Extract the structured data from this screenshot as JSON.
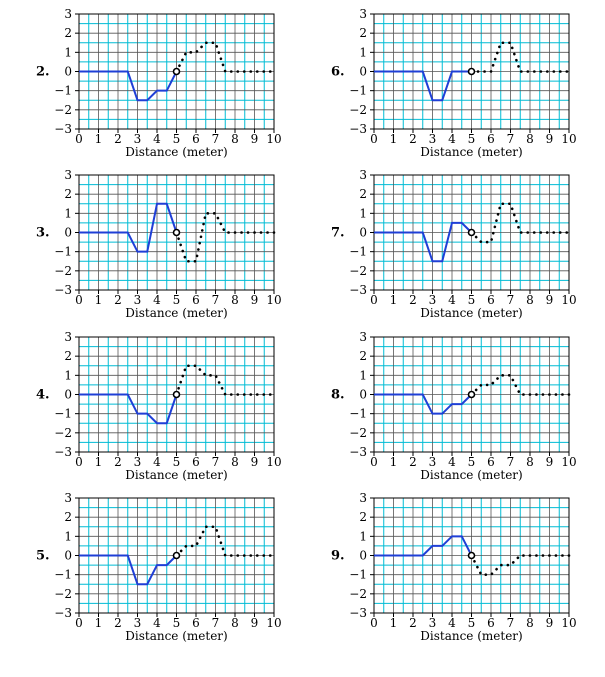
{
  "charts": [
    {
      "number": "2.",
      "xlabel": "Distance (meter)",
      "solid": [
        [
          0,
          0
        ],
        [
          2.5,
          0
        ],
        [
          3,
          -1.5
        ],
        [
          3.5,
          -1.5
        ],
        [
          4,
          -1
        ],
        [
          4.5,
          -1
        ],
        [
          5,
          0
        ]
      ],
      "dotted": [
        [
          5,
          0
        ],
        [
          5.5,
          1
        ],
        [
          6,
          1
        ],
        [
          6.5,
          1.5
        ],
        [
          7,
          1.5
        ],
        [
          7.5,
          0
        ],
        [
          10,
          0
        ]
      ],
      "marker": [
        5,
        0
      ]
    },
    {
      "number": "6.",
      "xlabel": "Distance (meter)",
      "solid": [
        [
          0,
          0
        ],
        [
          2.5,
          0
        ],
        [
          3,
          -1.5
        ],
        [
          3.5,
          -1.5
        ],
        [
          4,
          0
        ],
        [
          5,
          0
        ]
      ],
      "dotted": [
        [
          5,
          0
        ],
        [
          6,
          0
        ],
        [
          6.5,
          1.5
        ],
        [
          7,
          1.5
        ],
        [
          7.5,
          0
        ],
        [
          10,
          0
        ]
      ],
      "marker": [
        5,
        0
      ]
    },
    {
      "number": "3.",
      "xlabel": "Distance (meter)",
      "solid": [
        [
          0,
          0
        ],
        [
          2.5,
          0
        ],
        [
          3,
          -1
        ],
        [
          3.5,
          -1
        ],
        [
          4,
          1.5
        ],
        [
          4.5,
          1.5
        ],
        [
          5,
          0
        ]
      ],
      "dotted": [
        [
          5,
          0
        ],
        [
          5.5,
          -1.5
        ],
        [
          6,
          -1.5
        ],
        [
          6.5,
          1
        ],
        [
          7,
          1
        ],
        [
          7.5,
          0
        ],
        [
          10,
          0
        ]
      ],
      "marker": [
        5,
        0
      ]
    },
    {
      "number": "7.",
      "xlabel": "Distance (meter)",
      "solid": [
        [
          0,
          0
        ],
        [
          2.5,
          0
        ],
        [
          3,
          -1.5
        ],
        [
          3.5,
          -1.5
        ],
        [
          4,
          0.5
        ],
        [
          4.5,
          0.5
        ],
        [
          5,
          0
        ]
      ],
      "dotted": [
        [
          5,
          0
        ],
        [
          5.5,
          -0.5
        ],
        [
          6,
          -0.5
        ],
        [
          6.5,
          1.5
        ],
        [
          7,
          1.5
        ],
        [
          7.5,
          0
        ],
        [
          10,
          0
        ]
      ],
      "marker": [
        5,
        0
      ]
    },
    {
      "number": "4.",
      "xlabel": "Distance (meter)",
      "solid": [
        [
          0,
          0
        ],
        [
          2.5,
          0
        ],
        [
          3,
          -1
        ],
        [
          3.5,
          -1
        ],
        [
          4,
          -1.5
        ],
        [
          4.5,
          -1.5
        ],
        [
          5,
          0
        ]
      ],
      "dotted": [
        [
          5,
          0
        ],
        [
          5.5,
          1.5
        ],
        [
          6,
          1.5
        ],
        [
          6.5,
          1
        ],
        [
          7,
          1
        ],
        [
          7.5,
          0
        ],
        [
          10,
          0
        ]
      ],
      "marker": [
        5,
        0
      ]
    },
    {
      "number": "8.",
      "xlabel": "Distance (meter)",
      "solid": [
        [
          0,
          0
        ],
        [
          2.5,
          0
        ],
        [
          3,
          -1
        ],
        [
          3.5,
          -1
        ],
        [
          4,
          -0.5
        ],
        [
          4.5,
          -0.5
        ],
        [
          5,
          0
        ]
      ],
      "dotted": [
        [
          5,
          0
        ],
        [
          5.5,
          0.5
        ],
        [
          6,
          0.5
        ],
        [
          6.5,
          1
        ],
        [
          7,
          1
        ],
        [
          7.5,
          0
        ],
        [
          10,
          0
        ]
      ],
      "marker": [
        5,
        0
      ]
    },
    {
      "number": "5.",
      "xlabel": "Distance (meter)",
      "solid": [
        [
          0,
          0
        ],
        [
          2.5,
          0
        ],
        [
          3,
          -1.5
        ],
        [
          3.5,
          -1.5
        ],
        [
          4,
          -0.5
        ],
        [
          4.5,
          -0.5
        ],
        [
          5,
          0
        ]
      ],
      "dotted": [
        [
          5,
          0
        ],
        [
          5.5,
          0.5
        ],
        [
          6,
          0.5
        ],
        [
          6.5,
          1.5
        ],
        [
          7,
          1.5
        ],
        [
          7.5,
          0
        ],
        [
          10,
          0
        ]
      ],
      "marker": [
        5,
        0
      ]
    },
    {
      "number": "9.",
      "xlabel": "Distance (meter)",
      "solid": [
        [
          0,
          0
        ],
        [
          2.5,
          0
        ],
        [
          3,
          0.5
        ],
        [
          3.5,
          0.5
        ],
        [
          4,
          1
        ],
        [
          4.5,
          1
        ],
        [
          5,
          0
        ]
      ],
      "dotted": [
        [
          5,
          0
        ],
        [
          5.5,
          -1
        ],
        [
          6,
          -1
        ],
        [
          6.5,
          -0.5
        ],
        [
          7,
          -0.5
        ],
        [
          7.5,
          0
        ],
        [
          10,
          0
        ]
      ],
      "marker": [
        5,
        0
      ]
    }
  ],
  "chart_data": {
    "type": "line",
    "xlim": [
      0,
      10
    ],
    "ylim": [
      -3,
      3
    ],
    "xticks": [
      "0",
      "1",
      "2",
      "3",
      "4",
      "5",
      "6",
      "7",
      "8",
      "9",
      "10"
    ],
    "yticks": [
      "3",
      "2",
      "1",
      "0",
      "−1",
      "−2",
      "−3"
    ],
    "grid": true,
    "colors": {
      "solid": "#1f3fd6",
      "dotted": "#000000",
      "grid_minor": "#00bcd4",
      "grid_major": "#555555"
    }
  }
}
